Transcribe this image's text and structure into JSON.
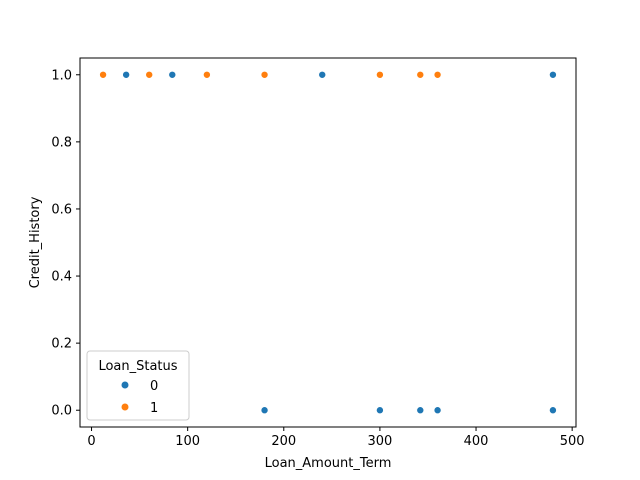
{
  "chart_data": {
    "type": "scatter",
    "xlabel": "Loan_Amount_Term",
    "ylabel": "Credit_History",
    "xlim": [
      -12,
      504
    ],
    "ylim": [
      -0.05,
      1.05
    ],
    "xticks": [
      0,
      100,
      200,
      300,
      400,
      500
    ],
    "xtick_labels": [
      "0",
      "100",
      "200",
      "300",
      "400",
      "500"
    ],
    "yticks": [
      0.0,
      0.2,
      0.4,
      0.6,
      0.8,
      1.0
    ],
    "ytick_labels": [
      "0.0",
      "0.2",
      "0.4",
      "0.6",
      "0.8",
      "1.0"
    ],
    "grid": false,
    "legend": {
      "title": "Loan_Status",
      "placement": "lower-left"
    },
    "series": [
      {
        "name": "0",
        "color": "#1f77b4",
        "points": [
          {
            "x": 36,
            "y": 1
          },
          {
            "x": 84,
            "y": 1
          },
          {
            "x": 240,
            "y": 1
          },
          {
            "x": 480,
            "y": 1
          },
          {
            "x": 180,
            "y": 0
          },
          {
            "x": 300,
            "y": 0
          },
          {
            "x": 342,
            "y": 0
          },
          {
            "x": 360,
            "y": 0
          },
          {
            "x": 480,
            "y": 0
          }
        ]
      },
      {
        "name": "1",
        "color": "#ff7f0e",
        "points": [
          {
            "x": 12,
            "y": 1
          },
          {
            "x": 60,
            "y": 1
          },
          {
            "x": 120,
            "y": 1
          },
          {
            "x": 180,
            "y": 1
          },
          {
            "x": 300,
            "y": 1
          },
          {
            "x": 342,
            "y": 1
          },
          {
            "x": 360,
            "y": 1
          }
        ]
      }
    ]
  }
}
